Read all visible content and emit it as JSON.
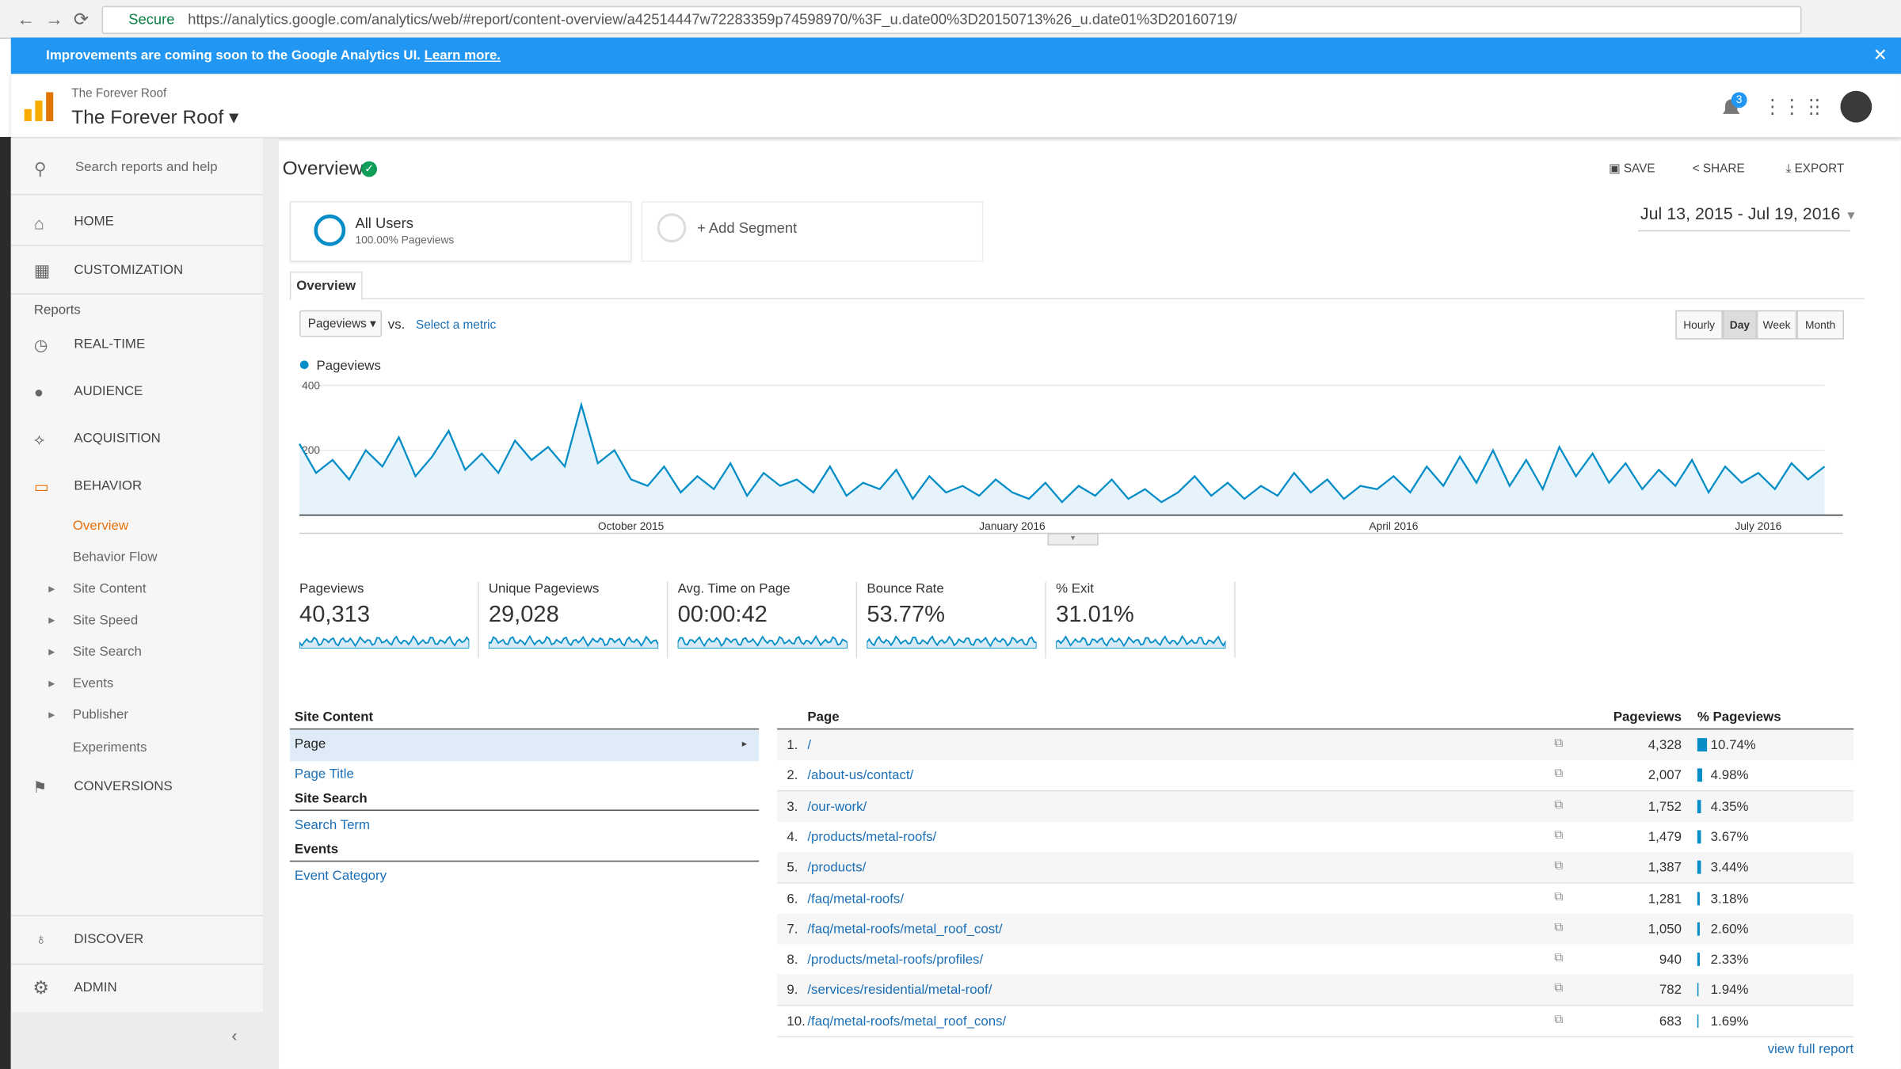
{
  "browser": {
    "secure": "Secure",
    "url": "https://analytics.google.com/analytics/web/#report/content-overview/a42514447w72283359p74598970/%3F_u.date00%3D20150713%26_u.date01%3D20160719/"
  },
  "banner": {
    "text": "Improvements are coming soon to the Google Analytics UI.",
    "link": "Learn more."
  },
  "header": {
    "account": "The Forever Roof",
    "property": "The Forever Roof",
    "notifications": "3"
  },
  "sidebar": {
    "search": "Search reports and help",
    "home": "HOME",
    "customization": "CUSTOMIZATION",
    "reports_heading": "Reports",
    "reports": [
      "REAL-TIME",
      "AUDIENCE",
      "ACQUISITION",
      "BEHAVIOR"
    ],
    "behavior_sub": [
      "Overview",
      "Behavior Flow",
      "Site Content",
      "Site Speed",
      "Site Search",
      "Events",
      "Publisher",
      "Experiments"
    ],
    "conversions": "CONVERSIONS",
    "discover": "DISCOVER",
    "admin": "ADMIN"
  },
  "toolbar": {
    "title": "Overview",
    "save": "SAVE",
    "share": "SHARE",
    "export": "EXPORT"
  },
  "segments": {
    "name": "All Users",
    "detail": "100.00% Pageviews",
    "add": "+ Add Segment",
    "date_range": "Jul 13, 2015 - Jul 19, 2016"
  },
  "tab": "Overview",
  "controls": {
    "metric": "Pageviews",
    "vs": "vs.",
    "select": "Select a metric",
    "granularity": [
      "Hourly",
      "Day",
      "Week",
      "Month"
    ]
  },
  "chart_data": {
    "type": "line",
    "categories": [
      null,
      null,
      null,
      null,
      null,
      null,
      null,
      null,
      null,
      null,
      null,
      null,
      null,
      null,
      null,
      null,
      null,
      null,
      null,
      null,
      "October 2015",
      null,
      null,
      null,
      null,
      null,
      null,
      null,
      null,
      null,
      null,
      null,
      null,
      null,
      null,
      null,
      null,
      null,
      null,
      null,
      null,
      null,
      null,
      "January 2016",
      null,
      null,
      null,
      null,
      null,
      null,
      null,
      null,
      null,
      null,
      null,
      null,
      null,
      null,
      null,
      null,
      null,
      null,
      null,
      null,
      null,
      null,
      "April 2016",
      null,
      null,
      null,
      null,
      null,
      null,
      null,
      null,
      null,
      null,
      null,
      null,
      null,
      null,
      null,
      null,
      null,
      null,
      null,
      null,
      null,
      "July 2016",
      null,
      null,
      null,
      null
    ],
    "series": [
      {
        "name": "Pageviews",
        "color": "#058dc7",
        "values": [
          220,
          130,
          170,
          110,
          200,
          150,
          240,
          120,
          180,
          260,
          140,
          190,
          130,
          230,
          170,
          210,
          150,
          340,
          160,
          200,
          110,
          90,
          150,
          70,
          120,
          80,
          160,
          60,
          130,
          90,
          110,
          70,
          150,
          60,
          100,
          80,
          140,
          50,
          120,
          70,
          90,
          60,
          110,
          70,
          50,
          100,
          40,
          90,
          60,
          110,
          50,
          80,
          40,
          70,
          120,
          60,
          100,
          50,
          90,
          60,
          130,
          70,
          110,
          50,
          90,
          80,
          120,
          70,
          150,
          90,
          180,
          100,
          200,
          90,
          170,
          80,
          210,
          120,
          190,
          100,
          160,
          80,
          140,
          90,
          170,
          70,
          150,
          100,
          130,
          80,
          160,
          110,
          150
        ]
      }
    ],
    "ylim": [
      0,
      400
    ],
    "yticks": [
      200,
      400
    ],
    "grid": true
  },
  "metrics": [
    {
      "label": "Pageviews",
      "value": "40,313"
    },
    {
      "label": "Unique Pageviews",
      "value": "29,028"
    },
    {
      "label": "Avg. Time on Page",
      "value": "00:00:42"
    },
    {
      "label": "Bounce Rate",
      "value": "53.77%"
    },
    {
      "label": "% Exit",
      "value": "31.01%"
    }
  ],
  "nav_panel": {
    "groups": [
      {
        "title": "Site Content",
        "links": [
          "Page",
          "Page Title"
        ]
      },
      {
        "title": "Site Search",
        "links": [
          "Search Term"
        ]
      },
      {
        "title": "Events",
        "links": [
          "Event Category"
        ]
      }
    ]
  },
  "table": {
    "headers": [
      "Page",
      "Pageviews",
      "% Pageviews"
    ],
    "rows": [
      {
        "rank": "1.",
        "page": "/",
        "pageviews": "4,328",
        "pct": 10.74,
        "pct_label": "10.74%"
      },
      {
        "rank": "2.",
        "page": "/about-us/contact/",
        "pageviews": "2,007",
        "pct": 4.98,
        "pct_label": "4.98%"
      },
      {
        "rank": "3.",
        "page": "/our-work/",
        "pageviews": "1,752",
        "pct": 4.35,
        "pct_label": "4.35%"
      },
      {
        "rank": "4.",
        "page": "/products/metal-roofs/",
        "pageviews": "1,479",
        "pct": 3.67,
        "pct_label": "3.67%"
      },
      {
        "rank": "5.",
        "page": "/products/",
        "pageviews": "1,387",
        "pct": 3.44,
        "pct_label": "3.44%"
      },
      {
        "rank": "6.",
        "page": "/faq/metal-roofs/",
        "pageviews": "1,281",
        "pct": 3.18,
        "pct_label": "3.18%"
      },
      {
        "rank": "7.",
        "page": "/faq/metal-roofs/metal_roof_cost/",
        "pageviews": "1,050",
        "pct": 2.6,
        "pct_label": "2.60%"
      },
      {
        "rank": "8.",
        "page": "/products/metal-roofs/profiles/",
        "pageviews": "940",
        "pct": 2.33,
        "pct_label": "2.33%"
      },
      {
        "rank": "9.",
        "page": "/services/residential/metal-roof/",
        "pageviews": "782",
        "pct": 1.94,
        "pct_label": "1.94%"
      },
      {
        "rank": "10.",
        "page": "/faq/metal-roofs/metal_roof_cons/",
        "pageviews": "683",
        "pct": 1.69,
        "pct_label": "1.69%"
      }
    ],
    "footer": "view full report"
  }
}
